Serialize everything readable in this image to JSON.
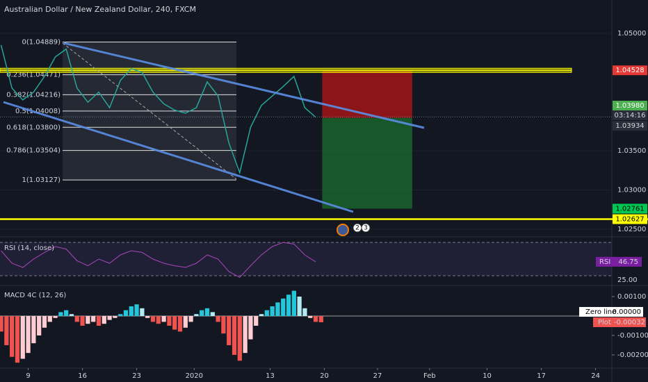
{
  "header": {
    "title": "Australian Dollar / New Zealand Dollar, 240, FXCM"
  },
  "chart_data": [
    {
      "type": "line",
      "x": [
        -2.5,
        -1.5,
        -0.5,
        0.5,
        1.5,
        2.5,
        3.5,
        4.5,
        5.5,
        6.5,
        7.5,
        8.5,
        9.5,
        10.5,
        11.5,
        12.5,
        13.5,
        14.5,
        15.5,
        16.5,
        17.5,
        18.5,
        19.5,
        20.5,
        21.5,
        22.5,
        23.5,
        24.5,
        25.5,
        26.5
      ],
      "values": [
        1.0485,
        1.043,
        1.0415,
        1.0425,
        1.0445,
        1.047,
        1.048,
        1.043,
        1.0412,
        1.0425,
        1.0405,
        1.044,
        1.0455,
        1.045,
        1.0425,
        1.041,
        1.0402,
        1.0398,
        1.0405,
        1.0438,
        1.042,
        1.036,
        1.0322,
        1.038,
        1.0408,
        1.042,
        1.0432,
        1.0445,
        1.0405,
        1.0393
      ],
      "color": "#26a69a",
      "xlim": [
        -2.6,
        53.8
      ],
      "ylim": [
        1.0241,
        1.0516
      ],
      "yticks": [
        {
          "value": 1.05,
          "label": "1.05000"
        },
        {
          "value": 1.035,
          "label": "1.03500"
        },
        {
          "value": 1.03,
          "label": "1.03000"
        },
        {
          "value": 1.025,
          "label": "1.02500"
        }
      ],
      "fib_levels": [
        {
          "value": 1.04889,
          "label": "0(1.04889)"
        },
        {
          "value": 1.04471,
          "label": "0.236(1.04471)"
        },
        {
          "value": 1.04216,
          "label": "0.382(1.04216)"
        },
        {
          "value": 1.04008,
          "label": "0.5(1.04008)"
        },
        {
          "value": 1.038,
          "label": "0.618(1.03800)"
        },
        {
          "value": 1.03504,
          "label": "0.786(1.03504)"
        },
        {
          "value": 1.03127,
          "label": "1(1.03127)"
        }
      ],
      "hlines": [
        {
          "value": 1.04528,
          "color": "#ffff00"
        },
        {
          "value": 1.02627,
          "color": "#ffff00"
        }
      ],
      "hline_label": 1.02627,
      "position": {
        "x": [
          27.1,
          35.4
        ],
        "stop": 1.04528,
        "entry": 1.0392,
        "target": 1.02761
      },
      "marker_price": {
        "value": 1.0398,
        "label": "1.03980"
      },
      "countdown": "03:14:16",
      "last_price": 1.03934,
      "events": [
        "2",
        "3"
      ]
    },
    {
      "type": "line",
      "title": "RSI (14, close)",
      "x": [
        -2.5,
        -1.5,
        -0.5,
        0.5,
        1.5,
        2.5,
        3.5,
        4.5,
        5.5,
        6.5,
        7.5,
        8.5,
        9.5,
        10.5,
        11.5,
        12.5,
        13.5,
        14.5,
        15.5,
        16.5,
        17.5,
        18.5,
        19.5,
        20.5,
        21.5,
        22.5,
        23.5,
        24.5,
        25.5,
        26.5
      ],
      "values": [
        60,
        45,
        40,
        50,
        58,
        65,
        62,
        48,
        42,
        50,
        45,
        55,
        60,
        58,
        50,
        45,
        42,
        40,
        45,
        55,
        50,
        35,
        28,
        42,
        55,
        65,
        70,
        68,
        55,
        46.75
      ],
      "color": "#ab47bc",
      "xlim": [
        -2.6,
        53.8
      ],
      "ylim": [
        19.2,
        73.3
      ],
      "yticks": [
        {
          "value": 25,
          "label": "25.00"
        }
      ],
      "bands": [
        30,
        70
      ],
      "value_tag": "RSI"
    },
    {
      "type": "bar",
      "title": "MACD 4C (12, 26)",
      "x": [
        -2.5,
        -2,
        -1.5,
        -1,
        -0.5,
        0,
        0.5,
        1,
        1.5,
        2,
        2.5,
        3,
        3.5,
        4,
        4.5,
        5,
        5.5,
        6,
        6.5,
        7,
        7.5,
        8,
        8.5,
        9,
        9.5,
        10,
        10.5,
        11,
        11.5,
        12,
        12.5,
        13,
        13.5,
        14,
        14.5,
        15,
        15.5,
        16,
        16.5,
        17,
        17.5,
        18,
        18.5,
        19,
        19.5,
        20,
        20.5,
        21,
        21.5,
        22,
        22.5,
        23,
        23.5,
        24,
        24.5,
        25,
        25.5,
        26,
        26.5,
        27
      ],
      "values": [
        -0.0008,
        -0.0015,
        -0.0021,
        -0.0024,
        -0.0022,
        -0.0019,
        -0.0014,
        -0.001,
        -0.0006,
        -0.0003,
        -0.0001,
        0.0002,
        0.0003,
        0.0001,
        -0.0003,
        -0.0005,
        -0.0004,
        -0.0003,
        -0.0005,
        -0.0004,
        -0.0002,
        -0.0001,
        0.0001,
        0.0003,
        0.0005,
        0.0006,
        0.0004,
        -0.0001,
        -0.0003,
        -0.0004,
        -0.0003,
        -0.0005,
        -0.0007,
        -0.0008,
        -0.0006,
        -0.0003,
        0.0001,
        0.0003,
        0.0004,
        0.0002,
        -0.0003,
        -0.0009,
        -0.0015,
        -0.002,
        -0.0023,
        -0.0019,
        -0.0012,
        -0.0005,
        0.0001,
        0.0003,
        0.0005,
        0.0007,
        0.0009,
        0.0011,
        0.0013,
        0.001,
        0.0004,
        -0.0001,
        -0.0003,
        -0.00032
      ],
      "xlim": [
        -2.6,
        53.8
      ],
      "ylim": [
        -0.00268,
        0.00143
      ],
      "yticks": [
        {
          "value": 0.001,
          "label": "0.00100"
        },
        {
          "value": -0.001,
          "label": "-0.00100"
        },
        {
          "value": -0.002,
          "label": "-0.00200"
        }
      ],
      "zero_line": {
        "name": "Zero line",
        "value": 0,
        "label": "0.00000"
      },
      "value_tag": "Plot",
      "xticks": [
        {
          "value": 0,
          "label": "9"
        },
        {
          "value": 5,
          "label": "16"
        },
        {
          "value": 10,
          "label": "23"
        },
        {
          "value": 15.3,
          "label": "2020"
        },
        {
          "value": 22.3,
          "label": "13"
        },
        {
          "value": 27.3,
          "label": "20"
        },
        {
          "value": 32.2,
          "label": "27"
        },
        {
          "value": 37,
          "label": "Feb"
        },
        {
          "value": 42.3,
          "label": "10"
        },
        {
          "value": 47.3,
          "label": "17"
        },
        {
          "value": 52.3,
          "label": "24"
        }
      ]
    }
  ]
}
